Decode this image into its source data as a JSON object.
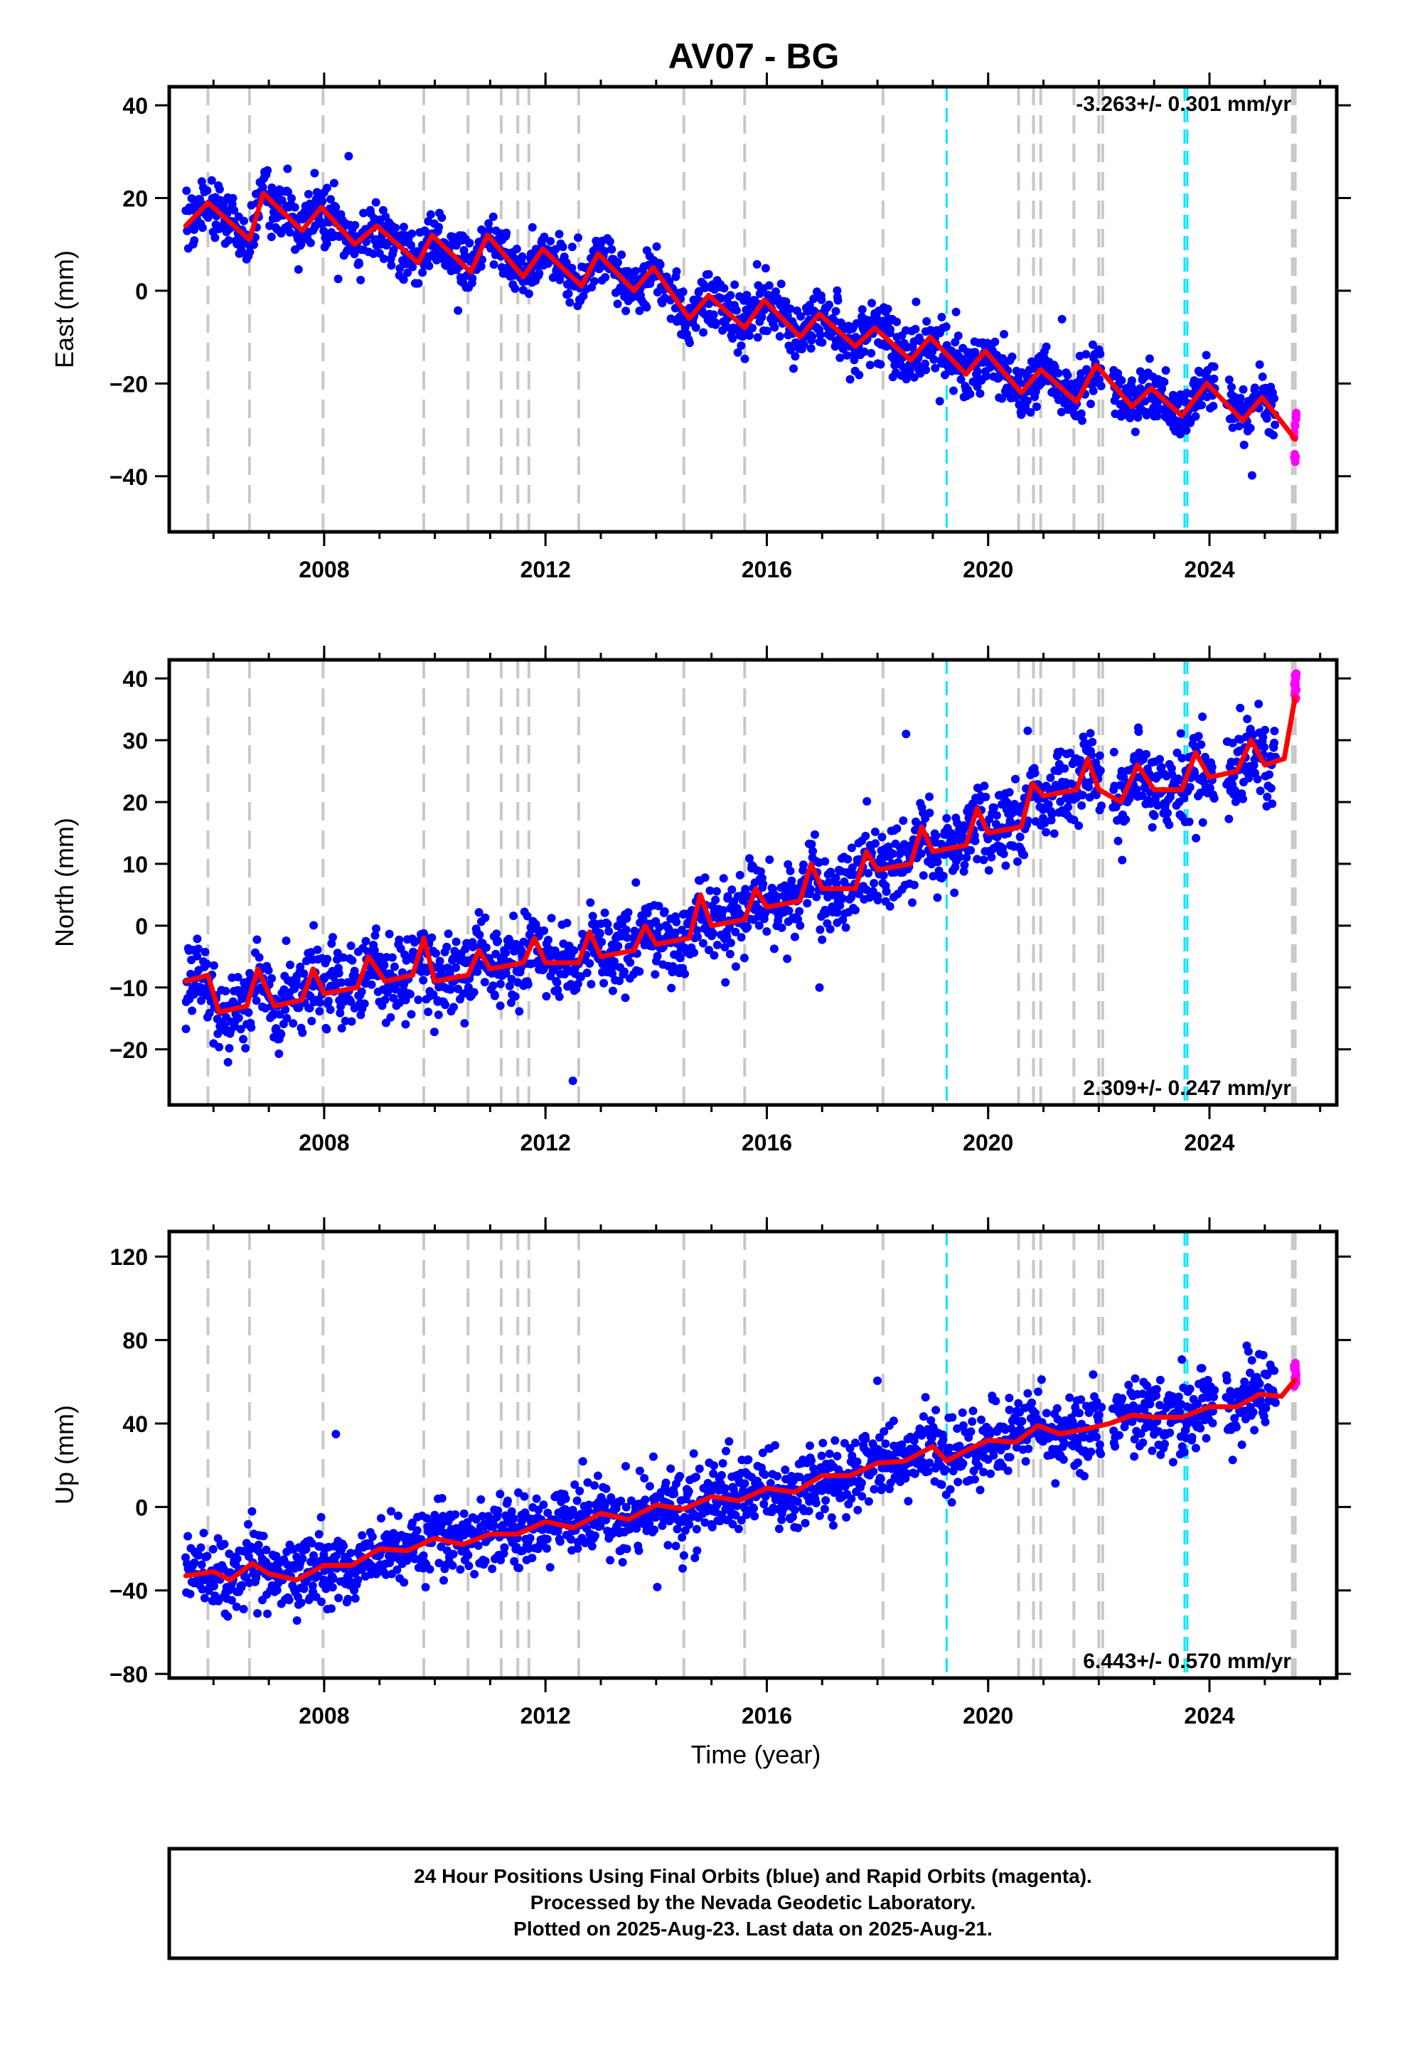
{
  "title": "AV07 - BG",
  "xlabel": "Time (year)",
  "footer": {
    "lines": [
      "24 Hour Positions Using Final Orbits (blue) and Rapid Orbits (magenta).",
      "Processed by the Nevada Geodetic Laboratory.",
      "Plotted on 2025-Aug-23. Last data on 2025-Aug-21."
    ]
  },
  "colors": {
    "final_orbits": "#0000ff",
    "rapid_orbits": "#ff00ff",
    "model_fit": "#ff0000",
    "event_gray": "#c8c8c8",
    "event_cyan": "#00e5ff"
  },
  "chart_data": [
    {
      "type": "scatter",
      "panel": "east",
      "ylabel": "East (mm)",
      "rate_label": "-3.263+/- 0.301 mm/yr",
      "rate_position": "top-right",
      "xlim": [
        2005.2,
        2026.3
      ],
      "ylim": [
        -52,
        44
      ],
      "xticks": [
        2008,
        2012,
        2016,
        2020,
        2024
      ],
      "yticks": [
        -40,
        -20,
        0,
        20,
        40
      ],
      "trend": {
        "start": [
          2005.5,
          17
        ],
        "end": [
          2025.55,
          -31.5
        ]
      },
      "seasonal_amplitude": 3.5,
      "scatter_sd": 3.0,
      "points_per_year": 90,
      "data_end": 2025.2,
      "rapid_range": [
        -37,
        -25
      ],
      "fit_knots": [
        [
          2005.5,
          14
        ],
        [
          2005.9,
          19
        ],
        [
          2006.65,
          11
        ],
        [
          2006.9,
          21
        ],
        [
          2007.6,
          13
        ],
        [
          2007.95,
          18
        ],
        [
          2008.55,
          10
        ],
        [
          2008.95,
          14
        ],
        [
          2009.7,
          6
        ],
        [
          2009.95,
          12
        ],
        [
          2010.65,
          4
        ],
        [
          2010.95,
          12
        ],
        [
          2011.6,
          3
        ],
        [
          2011.95,
          9
        ],
        [
          2012.65,
          1
        ],
        [
          2012.95,
          8
        ],
        [
          2013.6,
          0
        ],
        [
          2013.95,
          5
        ],
        [
          2014.6,
          -6
        ],
        [
          2014.95,
          -1
        ],
        [
          2015.6,
          -8
        ],
        [
          2015.95,
          -2
        ],
        [
          2016.6,
          -10
        ],
        [
          2016.95,
          -5
        ],
        [
          2017.6,
          -12
        ],
        [
          2017.95,
          -8
        ],
        [
          2018.6,
          -15
        ],
        [
          2018.95,
          -10
        ],
        [
          2019.6,
          -18
        ],
        [
          2019.95,
          -13
        ],
        [
          2020.6,
          -22
        ],
        [
          2020.95,
          -17
        ],
        [
          2021.6,
          -24
        ],
        [
          2021.95,
          -16
        ],
        [
          2022.6,
          -25
        ],
        [
          2022.95,
          -21
        ],
        [
          2023.5,
          -27
        ],
        [
          2023.95,
          -20
        ],
        [
          2024.6,
          -28
        ],
        [
          2024.95,
          -23
        ],
        [
          2025.55,
          -32
        ]
      ]
    },
    {
      "type": "scatter",
      "panel": "north",
      "ylabel": "North (mm)",
      "rate_label": "2.309+/- 0.247 mm/yr",
      "rate_position": "bottom-right",
      "xlim": [
        2005.2,
        2026.3
      ],
      "ylim": [
        -29,
        43
      ],
      "xticks": [
        2008,
        2012,
        2016,
        2020,
        2024
      ],
      "yticks": [
        -20,
        -10,
        0,
        10,
        20,
        30,
        40
      ],
      "trend": {
        "start": [
          2005.5,
          -10
        ],
        "end": [
          2025.55,
          34
        ]
      },
      "seasonal_amplitude": 3.0,
      "scatter_sd": 3.2,
      "points_per_year": 90,
      "data_end": 2025.2,
      "rapid_range": [
        36,
        41
      ],
      "fit_knots": [
        [
          2005.5,
          -9
        ],
        [
          2005.9,
          -8
        ],
        [
          2006.1,
          -14
        ],
        [
          2006.6,
          -13
        ],
        [
          2006.8,
          -7
        ],
        [
          2007.1,
          -13
        ],
        [
          2007.6,
          -12
        ],
        [
          2007.8,
          -7
        ],
        [
          2008.0,
          -11
        ],
        [
          2008.6,
          -10
        ],
        [
          2008.8,
          -5
        ],
        [
          2009.1,
          -9
        ],
        [
          2009.6,
          -8
        ],
        [
          2009.8,
          -2
        ],
        [
          2010.0,
          -9
        ],
        [
          2010.6,
          -8
        ],
        [
          2010.8,
          -4
        ],
        [
          2011.0,
          -7
        ],
        [
          2011.6,
          -6
        ],
        [
          2011.8,
          -2
        ],
        [
          2012.0,
          -6
        ],
        [
          2012.6,
          -6
        ],
        [
          2012.8,
          -1
        ],
        [
          2013.0,
          -5
        ],
        [
          2013.6,
          -4
        ],
        [
          2013.8,
          0
        ],
        [
          2014.0,
          -3
        ],
        [
          2014.6,
          -2
        ],
        [
          2014.8,
          5
        ],
        [
          2015.0,
          0
        ],
        [
          2015.6,
          1
        ],
        [
          2015.8,
          6
        ],
        [
          2016.0,
          3
        ],
        [
          2016.6,
          4
        ],
        [
          2016.8,
          10
        ],
        [
          2017.0,
          6
        ],
        [
          2017.6,
          6
        ],
        [
          2017.8,
          12
        ],
        [
          2018.0,
          9
        ],
        [
          2018.6,
          10
        ],
        [
          2018.8,
          16
        ],
        [
          2019.0,
          12
        ],
        [
          2019.6,
          13
        ],
        [
          2019.8,
          19
        ],
        [
          2020.0,
          15
        ],
        [
          2020.6,
          16
        ],
        [
          2020.8,
          23
        ],
        [
          2021.0,
          21
        ],
        [
          2021.6,
          22
        ],
        [
          2021.8,
          27
        ],
        [
          2022.0,
          22
        ],
        [
          2022.4,
          20
        ],
        [
          2022.7,
          26
        ],
        [
          2023.0,
          22
        ],
        [
          2023.5,
          22
        ],
        [
          2023.75,
          28
        ],
        [
          2024.0,
          24
        ],
        [
          2024.5,
          25
        ],
        [
          2024.75,
          30
        ],
        [
          2025.0,
          26
        ],
        [
          2025.35,
          27
        ],
        [
          2025.55,
          37
        ]
      ]
    },
    {
      "type": "scatter",
      "panel": "up",
      "ylabel": "Up (mm)",
      "rate_label": "6.443+/- 0.570 mm/yr",
      "rate_position": "bottom-right",
      "xlim": [
        2005.2,
        2026.3
      ],
      "ylim": [
        -82,
        132
      ],
      "xticks": [
        2008,
        2012,
        2016,
        2020,
        2024
      ],
      "yticks": [
        -80,
        -40,
        0,
        40,
        80,
        120
      ],
      "trend": {
        "start": [
          2005.5,
          -33
        ],
        "end": [
          2025.55,
          60
        ]
      },
      "seasonal_amplitude": 4.0,
      "scatter_sd": 8.5,
      "points_per_year": 90,
      "data_end": 2025.2,
      "rapid_range": [
        55,
        70
      ],
      "fit_knots": [
        [
          2005.5,
          -33
        ],
        [
          2006.0,
          -31
        ],
        [
          2006.3,
          -35
        ],
        [
          2006.7,
          -27
        ],
        [
          2007.0,
          -32
        ],
        [
          2007.5,
          -35
        ],
        [
          2008.0,
          -28
        ],
        [
          2008.5,
          -28
        ],
        [
          2009.0,
          -20
        ],
        [
          2009.5,
          -21
        ],
        [
          2010.0,
          -15
        ],
        [
          2010.5,
          -18
        ],
        [
          2011.0,
          -13
        ],
        [
          2011.5,
          -13
        ],
        [
          2012.0,
          -7
        ],
        [
          2012.5,
          -10
        ],
        [
          2013.0,
          -3
        ],
        [
          2013.5,
          -6
        ],
        [
          2014.0,
          1
        ],
        [
          2014.5,
          -1
        ],
        [
          2015.0,
          5
        ],
        [
          2015.5,
          3
        ],
        [
          2016.0,
          9
        ],
        [
          2016.5,
          7
        ],
        [
          2017.0,
          15
        ],
        [
          2017.5,
          15
        ],
        [
          2018.0,
          21
        ],
        [
          2018.5,
          22
        ],
        [
          2019.0,
          29
        ],
        [
          2019.25,
          22
        ],
        [
          2019.6,
          27
        ],
        [
          2020.0,
          32
        ],
        [
          2020.5,
          31
        ],
        [
          2020.9,
          39
        ],
        [
          2021.3,
          35
        ],
        [
          2021.7,
          37
        ],
        [
          2022.2,
          40
        ],
        [
          2022.6,
          44
        ],
        [
          2023.0,
          43
        ],
        [
          2023.5,
          43
        ],
        [
          2024.0,
          48
        ],
        [
          2024.5,
          48
        ],
        [
          2024.9,
          54
        ],
        [
          2025.3,
          53
        ],
        [
          2025.55,
          61
        ]
      ]
    }
  ],
  "events": {
    "gray": [
      2005.9,
      2006.65,
      2007.98,
      2009.8,
      2010.6,
      2011.2,
      2011.5,
      2011.7,
      2012.6,
      2014.5,
      2015.6,
      2018.1,
      2020.55,
      2020.82,
      2020.95,
      2021.55,
      2022.0,
      2022.07,
      2025.5,
      2025.55
    ],
    "cyan": [
      2019.25,
      2023.55,
      2023.6
    ]
  }
}
